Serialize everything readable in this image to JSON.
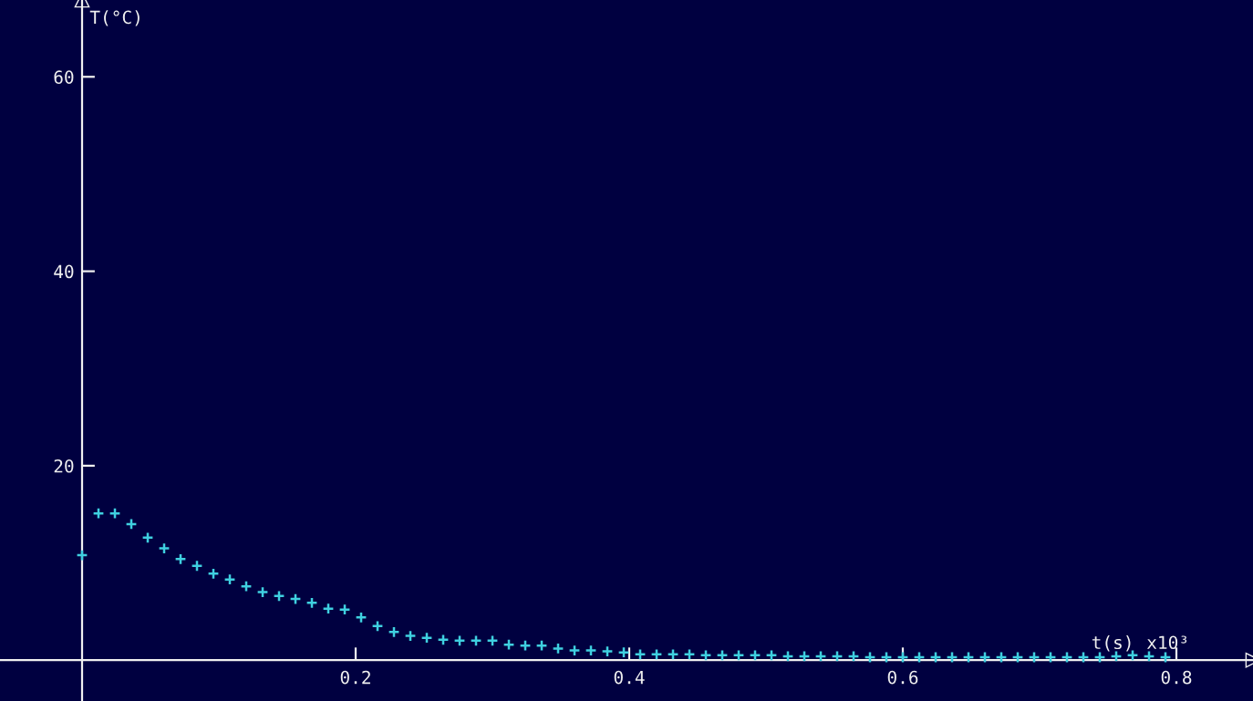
{
  "chart_data": {
    "type": "scatter",
    "xlabel": "t(s)",
    "ylabel": "T(°C)",
    "annotations": [
      "x10³"
    ],
    "x": [
      0,
      0.012,
      0.024,
      0.036,
      0.048,
      0.06,
      0.072,
      0.084,
      0.096,
      0.108,
      0.12,
      0.132,
      0.144,
      0.156,
      0.168,
      0.18,
      0.192,
      0.204,
      0.216,
      0.228,
      0.24,
      0.252,
      0.264,
      0.276,
      0.288,
      0.3,
      0.312,
      0.324,
      0.336,
      0.348,
      0.36,
      0.372,
      0.384,
      0.396,
      0.408,
      0.42,
      0.432,
      0.444,
      0.456,
      0.468,
      0.48,
      0.492,
      0.504,
      0.516,
      0.528,
      0.54,
      0.552,
      0.564,
      0.576,
      0.588,
      0.6,
      0.612,
      0.624,
      0.636,
      0.648,
      0.66,
      0.672,
      0.684,
      0.696,
      0.708,
      0.72,
      0.732,
      0.744,
      0.756,
      0.768,
      0.78,
      0.792
    ],
    "series": [
      {
        "color": "#3fd0e0",
        "values": [
          10.8,
          15.1,
          15.1,
          14.0,
          12.6,
          11.5,
          10.4,
          9.7,
          8.9,
          8.3,
          7.6,
          7.0,
          6.6,
          6.3,
          5.9,
          5.3,
          5.2,
          4.4,
          3.5,
          2.9,
          2.5,
          2.3,
          2.1,
          2.0,
          2.0,
          2.0,
          1.6,
          1.5,
          1.5,
          1.2,
          1.0,
          1.0,
          0.9,
          0.8,
          0.6,
          0.6,
          0.6,
          0.6,
          0.5,
          0.5,
          0.5,
          0.5,
          0.5,
          0.4,
          0.4,
          0.4,
          0.4,
          0.4,
          0.3,
          0.3,
          0.3,
          0.3,
          0.3,
          0.3,
          0.3,
          0.3,
          0.3,
          0.3,
          0.3,
          0.3,
          0.3,
          0.3,
          0.3,
          0.4,
          0.5,
          0.4,
          0.3
        ]
      }
    ],
    "xlim": [
      -0.06,
      0.856
    ],
    "ylim": [
      -4.2,
      67.9
    ],
    "xticks": [
      0.2,
      0.4,
      0.6,
      0.8
    ],
    "yticks": [
      20,
      40,
      60
    ],
    "marker": "cross",
    "grid": false
  }
}
